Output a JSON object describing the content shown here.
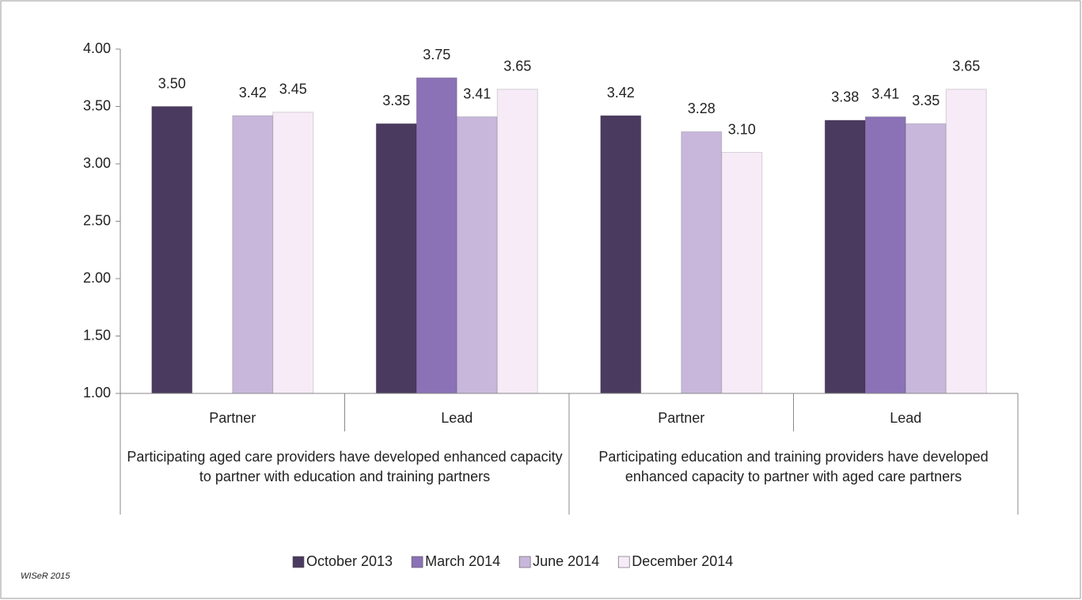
{
  "chart_data": {
    "type": "bar",
    "categories": [
      "Partner",
      "Lead",
      "Partner",
      "Lead"
    ],
    "groups": [
      "Participating aged care providers have developed enhanced capacity to partner with education and training partners",
      "Participating education and training providers have developed enhanced capacity to partner with aged care partners"
    ],
    "series": [
      {
        "name": "October 2013",
        "color": "#4b3a5f",
        "values": [
          3.5,
          3.35,
          3.42,
          3.38
        ],
        "value_labels": [
          "3.50",
          "3.35",
          "3.42",
          "3.38"
        ]
      },
      {
        "name": "March 2014",
        "color": "#8b72b6",
        "values": [
          null,
          3.75,
          null,
          3.41
        ],
        "value_labels": [
          null,
          "3.75",
          null,
          "3.41"
        ]
      },
      {
        "name": "June 2014",
        "color": "#c8b7db",
        "values": [
          3.42,
          3.41,
          3.28,
          3.35
        ],
        "value_labels": [
          "3.42",
          "3.41",
          "3.28",
          "3.35"
        ]
      },
      {
        "name": "December 2014",
        "color": "#f6ebf7",
        "values": [
          3.45,
          3.65,
          3.1,
          3.65
        ],
        "value_labels": [
          "3.45",
          "3.65",
          "3.10",
          "3.65"
        ]
      }
    ],
    "ylim": [
      1,
      4
    ],
    "yticks": [
      {
        "value": 1,
        "label": "1.00"
      },
      {
        "value": 1.5,
        "label": "1.50"
      },
      {
        "value": 2,
        "label": "2.00"
      },
      {
        "value": 2.5,
        "label": "2.50"
      },
      {
        "value": 3,
        "label": "3.00"
      },
      {
        "value": 3.5,
        "label": "3.50"
      },
      {
        "value": 4,
        "label": "4.00"
      }
    ],
    "legend": "bottom",
    "source": "WISeR 2015"
  }
}
